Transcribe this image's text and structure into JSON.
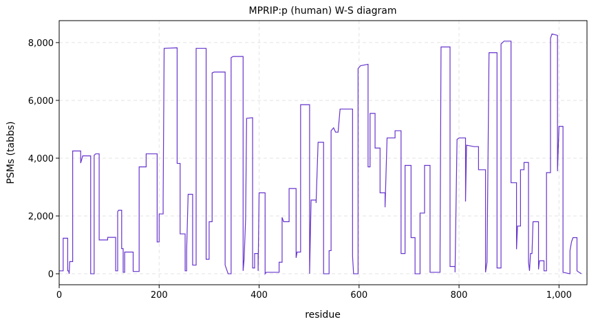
{
  "chart_data": {
    "type": "line",
    "title": "MPRIP:p (human) W-S diagram",
    "x_label": "residue",
    "y_label": "PSMs (tabbs)",
    "x": [
      0,
      8,
      8,
      17,
      17,
      19,
      20,
      21,
      27,
      27,
      43,
      43,
      45,
      47,
      63,
      63,
      70,
      70,
      73,
      80,
      80,
      97,
      97,
      113,
      113,
      117,
      117,
      119,
      125,
      125,
      128,
      128,
      131,
      131,
      148,
      148,
      160,
      160,
      174,
      174,
      196,
      196,
      200,
      200,
      208,
      208,
      210,
      236,
      236,
      242,
      242,
      252,
      252,
      255,
      255,
      258,
      267,
      267,
      274,
      274,
      294,
      294,
      300,
      300,
      306,
      306,
      310,
      332,
      332,
      336,
      338,
      344,
      344,
      348,
      368,
      368,
      370,
      373,
      375,
      387,
      387,
      391,
      391,
      398,
      398,
      400,
      412,
      412,
      414,
      440,
      440,
      446,
      446,
      449,
      460,
      460,
      474,
      474,
      476,
      483,
      483,
      501,
      501,
      504,
      514,
      514,
      518,
      529,
      529,
      540,
      540,
      544,
      544,
      549,
      553,
      558,
      562,
      587,
      587,
      589,
      598,
      598,
      603,
      618,
      618,
      622,
      622,
      632,
      632,
      642,
      642,
      652,
      652,
      656,
      672,
      672,
      684,
      684,
      692,
      692,
      704,
      704,
      712,
      712,
      722,
      722,
      731,
      731,
      742,
      742,
      762,
      762,
      764,
      782,
      782,
      792,
      792,
      796,
      800,
      813,
      813,
      815,
      830,
      839,
      839,
      853,
      853,
      856,
      860,
      876,
      876,
      884,
      884,
      890,
      904,
      904,
      915,
      915,
      917,
      923,
      923,
      930,
      930,
      939,
      939,
      941,
      943,
      946,
      948,
      959,
      959,
      961,
      970,
      970,
      975,
      975,
      983,
      983,
      986,
      997,
      997,
      1000,
      1008,
      1008,
      1022,
      1022,
      1025,
      1028,
      1036,
      1036,
      1040,
      1045
    ],
    "series": [
      {
        "name": "PSMs",
        "color": "#6633cc",
        "values": [
          100,
          100,
          1230,
          1230,
          100,
          100,
          0,
          420,
          420,
          4250,
          4250,
          3830,
          3950,
          4080,
          4080,
          0,
          0,
          4100,
          4150,
          4150,
          1170,
          1170,
          1260,
          1260,
          100,
          100,
          2150,
          2200,
          2200,
          870,
          870,
          50,
          50,
          750,
          750,
          80,
          80,
          3700,
          3700,
          4150,
          4150,
          1100,
          1100,
          2070,
          2070,
          2600,
          7800,
          7820,
          3820,
          3820,
          1380,
          1380,
          100,
          100,
          800,
          2750,
          2750,
          300,
          300,
          7800,
          7800,
          500,
          500,
          1800,
          1800,
          6950,
          6980,
          6980,
          300,
          100,
          0,
          0,
          7480,
          7520,
          7520,
          100,
          500,
          1900,
          5380,
          5400,
          200,
          200,
          700,
          700,
          100,
          2800,
          2800,
          0,
          50,
          50,
          400,
          400,
          1950,
          1800,
          1800,
          2950,
          2950,
          550,
          750,
          750,
          5850,
          5850,
          0,
          2550,
          2550,
          2450,
          4550,
          4550,
          0,
          0,
          800,
          800,
          4950,
          5050,
          4900,
          4900,
          5700,
          5700,
          600,
          0,
          0,
          7100,
          7200,
          7250,
          3700,
          3700,
          5550,
          5550,
          4350,
          4350,
          2800,
          2800,
          2300,
          4700,
          4700,
          4950,
          4950,
          700,
          700,
          3750,
          3750,
          1250,
          1250,
          0,
          0,
          2100,
          2100,
          3750,
          3750,
          50,
          50,
          640,
          7850,
          7850,
          250,
          250,
          50,
          4650,
          4700,
          4700,
          2500,
          4450,
          4400,
          4400,
          3600,
          3600,
          50,
          400,
          7650,
          7650,
          200,
          200,
          7950,
          8050,
          8050,
          3150,
          3150,
          850,
          1650,
          1650,
          3600,
          3600,
          3850,
          3850,
          400,
          100,
          700,
          700,
          1800,
          1800,
          150,
          450,
          450,
          100,
          100,
          3500,
          3500,
          8150,
          8300,
          8250,
          3550,
          5100,
          5100,
          50,
          0,
          800,
          1100,
          1250,
          1250,
          100,
          50,
          0
        ]
      }
    ],
    "xlim": [
      0,
      1056
    ],
    "ylim": [
      -380,
      8760
    ],
    "xticks": [
      0,
      200,
      400,
      600,
      800,
      {
        "value": 1000,
        "label": "1,000"
      }
    ],
    "yticks": [
      0,
      {
        "value": 2000,
        "label": "2,000"
      },
      {
        "value": 4000,
        "label": "4,000"
      },
      {
        "value": 6000,
        "label": "6,000"
      },
      {
        "value": 8000,
        "label": "8,000"
      }
    ],
    "grid": true
  }
}
